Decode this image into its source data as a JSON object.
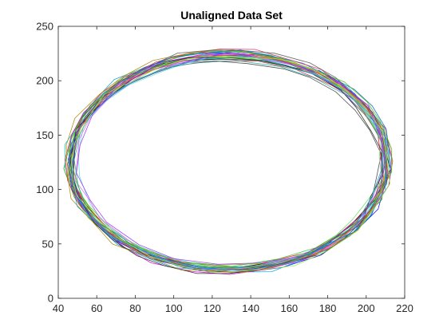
{
  "chart_data": {
    "type": "line",
    "title": "Unaligned Data Set",
    "xlabel": "",
    "ylabel": "",
    "xlim": [
      40,
      220
    ],
    "ylim": [
      0,
      250
    ],
    "xticks": [
      40,
      60,
      80,
      100,
      120,
      140,
      160,
      180,
      200,
      220
    ],
    "yticks": [
      0,
      50,
      100,
      150,
      200,
      250
    ],
    "xtick_labels": [
      "40",
      "60",
      "80",
      "100",
      "120",
      "140",
      "160",
      "180",
      "200",
      "220"
    ],
    "ytick_labels": [
      "0",
      "50",
      "100",
      "150",
      "200",
      "250"
    ],
    "grid": false,
    "box": true,
    "description_shape": "approximately 30 overlapping closed elliptical outlines",
    "base_ellipse": {
      "center_x": 128.5,
      "center_y": 125,
      "semi_axis_x": 82,
      "semi_axis_y": 99
    },
    "series_colors": [
      "#0000ff",
      "#00aa00",
      "#ff0000",
      "#00cccc",
      "#cc00cc",
      "#999900",
      "#000000",
      "#3333aa",
      "#33cc33",
      "#cc3333",
      "#00a0e0",
      "#aa33cc",
      "#8b7b3a",
      "#444444",
      "#6666ff",
      "#66dd66",
      "#ff6666",
      "#66dddd",
      "#dd66dd",
      "#bbbb44",
      "#222222",
      "#0066cc",
      "#44bb00",
      "#dd2255",
      "#22aaaa",
      "#9933ff",
      "#aa8800",
      "#555555",
      "#2299ff",
      "#99ee33"
    ],
    "series_count": 30
  }
}
